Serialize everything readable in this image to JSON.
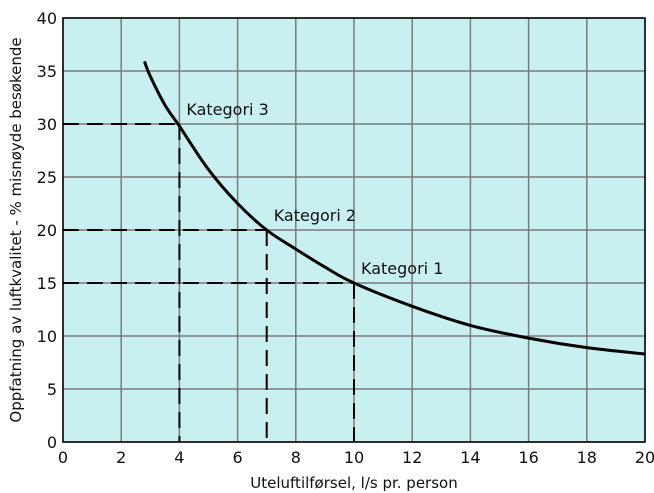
{
  "chart_data": {
    "type": "line",
    "xlabel": "Uteluftilførsel, l/s pr. person",
    "ylabel": "Oppfatning av luftkvalitet - % misnøyde besøkende",
    "xlim": [
      0,
      20
    ],
    "ylim": [
      0,
      40
    ],
    "xticks": [
      0,
      2,
      4,
      6,
      8,
      10,
      12,
      14,
      16,
      18,
      20
    ],
    "yticks": [
      0,
      5,
      10,
      15,
      20,
      25,
      30,
      35,
      40
    ],
    "grid": true,
    "colors": {
      "plot_bg": "#c8f0f0",
      "grid": "#7a7a7a",
      "curve": "#000000"
    },
    "series": [
      {
        "x": [
          2.8,
          3.0,
          3.5,
          4.0,
          5.0,
          6.0,
          7.0,
          8.0,
          9.0,
          10.0,
          12.0,
          14.0,
          16.0,
          18.0,
          20.0
        ],
        "y": [
          35.9,
          34.5,
          31.8,
          29.8,
          25.7,
          22.5,
          20.0,
          18.2,
          16.5,
          15.0,
          12.8,
          11.0,
          9.8,
          8.9,
          8.3
        ]
      }
    ],
    "annotations": [
      {
        "text": "Kategori 3",
        "x": 4,
        "y": 30
      },
      {
        "text": "Kategori 2",
        "x": 7,
        "y": 20
      },
      {
        "text": "Kategori 1",
        "x": 10,
        "y": 15
      }
    ]
  }
}
